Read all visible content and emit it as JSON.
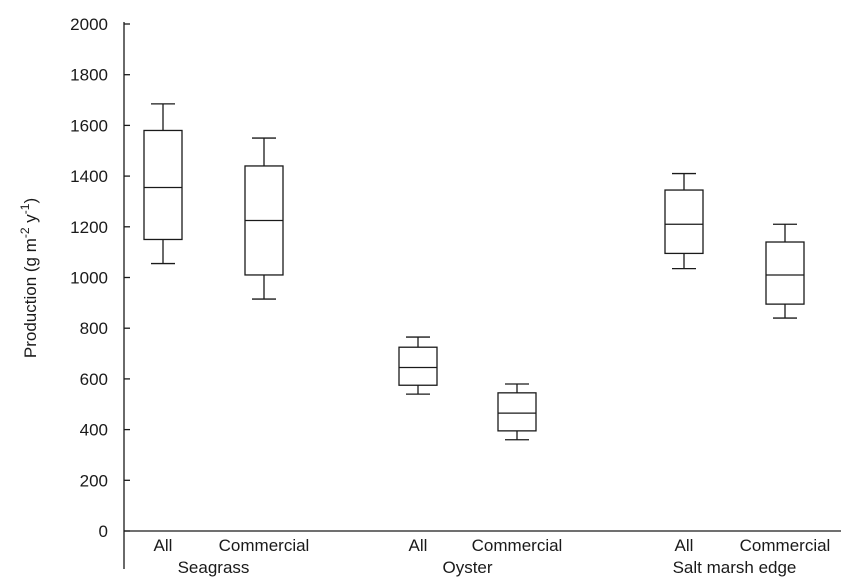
{
  "chart_data": {
    "type": "boxplot",
    "ylabel_main": "Production (g m",
    "ylabel_sup1": "-2",
    "ylabel_mid": " y",
    "ylabel_sup2": "-1",
    "ylabel_end": ")",
    "ylim": [
      0,
      2000
    ],
    "yticks": [
      "0",
      "200",
      "400",
      "600",
      "800",
      "1000",
      "1200",
      "1400",
      "1600",
      "1800",
      "2000"
    ],
    "groups": [
      {
        "name": "Seagrass",
        "boxes": [
          {
            "label": "All",
            "whisker_low": 1055,
            "q1": 1150,
            "median": 1355,
            "q3": 1580,
            "whisker_high": 1685
          },
          {
            "label": "Commercial",
            "whisker_low": 915,
            "q1": 1010,
            "median": 1225,
            "q3": 1440,
            "whisker_high": 1550
          }
        ]
      },
      {
        "name": "Oyster",
        "boxes": [
          {
            "label": "All",
            "whisker_low": 540,
            "q1": 575,
            "median": 645,
            "q3": 725,
            "whisker_high": 765
          },
          {
            "label": "Commercial",
            "whisker_low": 360,
            "q1": 395,
            "median": 465,
            "q3": 545,
            "whisker_high": 580
          }
        ]
      },
      {
        "name": "Salt marsh edge",
        "boxes": [
          {
            "label": "All",
            "whisker_low": 1035,
            "q1": 1095,
            "median": 1210,
            "q3": 1345,
            "whisker_high": 1410
          },
          {
            "label": "Commercial",
            "whisker_low": 840,
            "q1": 895,
            "median": 1010,
            "q3": 1140,
            "whisker_high": 1210
          }
        ]
      }
    ],
    "colors": {
      "stroke": "#1a1a1a",
      "box_fill": "#ffffff"
    }
  }
}
